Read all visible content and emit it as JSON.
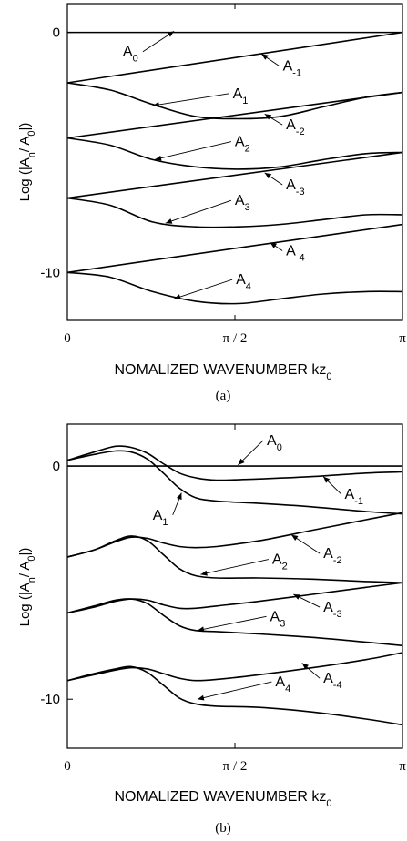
{
  "chart_data": [
    {
      "type": "line",
      "panel_label": "(a)",
      "xlabel": "NOMALIZED WAVENUMBER kz",
      "xlabel_sub": "0",
      "ylabel": "Log (|A_n/A_0|)",
      "xlim": [
        0,
        3.1416
      ],
      "ylim": [
        -12,
        1.2
      ],
      "x_ticks": [
        {
          "v": 0,
          "label": "0"
        },
        {
          "v": 1.5708,
          "label": "π / 2"
        },
        {
          "v": 3.1416,
          "label": "π"
        }
      ],
      "y_ticks": [
        {
          "v": 0,
          "label": "0"
        },
        {
          "v": -10,
          "label": "-10"
        }
      ],
      "series": [
        {
          "name": "A0",
          "x": [
            0,
            3.1416
          ],
          "y": [
            0,
            0
          ]
        },
        {
          "name": "A-1",
          "x": [
            0,
            3.1416
          ],
          "y": [
            -2.1,
            0
          ]
        },
        {
          "name": "A1",
          "x": [
            0,
            0.4,
            0.8,
            1.2,
            1.6,
            2.0,
            2.4,
            2.8,
            3.1416
          ],
          "y": [
            -2.1,
            -2.4,
            -3.0,
            -3.5,
            -3.6,
            -3.5,
            -3.1,
            -2.7,
            -2.5
          ]
        },
        {
          "name": "A-2",
          "x": [
            0,
            3.1416
          ],
          "y": [
            -4.4,
            -2.5
          ]
        },
        {
          "name": "A2",
          "x": [
            0,
            0.4,
            0.8,
            1.2,
            1.6,
            2.0,
            2.4,
            2.8,
            3.1416
          ],
          "y": [
            -4.4,
            -4.7,
            -5.3,
            -5.6,
            -5.7,
            -5.6,
            -5.3,
            -5.05,
            -5.0
          ]
        },
        {
          "name": "A-3",
          "x": [
            0,
            3.1416
          ],
          "y": [
            -6.9,
            -5.0
          ]
        },
        {
          "name": "A3",
          "x": [
            0,
            0.4,
            0.8,
            1.2,
            1.6,
            2.0,
            2.4,
            2.8,
            3.1416
          ],
          "y": [
            -6.9,
            -7.2,
            -7.9,
            -8.1,
            -8.1,
            -8.0,
            -7.8,
            -7.6,
            -7.6
          ]
        },
        {
          "name": "A-4",
          "x": [
            0,
            3.1416
          ],
          "y": [
            -10.0,
            -8.0
          ]
        },
        {
          "name": "A4",
          "x": [
            0,
            0.4,
            0.8,
            1.2,
            1.6,
            2.0,
            2.4,
            2.8,
            3.1416
          ],
          "y": [
            -10.0,
            -10.2,
            -10.8,
            -11.2,
            -11.3,
            -11.1,
            -10.9,
            -10.8,
            -10.8
          ]
        }
      ],
      "annotations": [
        {
          "series": "A0",
          "main": "A",
          "sub": "0",
          "label_x": 0.52,
          "label_y": -0.8,
          "arrow_x": 1.0,
          "arrow_y": 0.05
        },
        {
          "series": "A-1",
          "main": "A",
          "sub": "-1",
          "label_x": 2.02,
          "label_y": -1.4,
          "arrow_x": 1.82,
          "arrow_y": -0.9
        },
        {
          "series": "A1",
          "main": "A",
          "sub": "1",
          "label_x": 1.55,
          "label_y": -2.55,
          "arrow_x": 0.8,
          "arrow_y": -3.05
        },
        {
          "series": "A-2",
          "main": "A",
          "sub": "-2",
          "label_x": 2.05,
          "label_y": -3.85,
          "arrow_x": 1.85,
          "arrow_y": -3.4
        },
        {
          "series": "A2",
          "main": "A",
          "sub": "2",
          "label_x": 1.57,
          "label_y": -4.55,
          "arrow_x": 0.82,
          "arrow_y": -5.3
        },
        {
          "series": "A-3",
          "main": "A",
          "sub": "-3",
          "label_x": 2.05,
          "label_y": -6.35,
          "arrow_x": 1.85,
          "arrow_y": -5.85
        },
        {
          "series": "A3",
          "main": "A",
          "sub": "3",
          "label_x": 1.57,
          "label_y": -7.0,
          "arrow_x": 0.92,
          "arrow_y": -7.95
        },
        {
          "series": "A-4",
          "main": "A",
          "sub": "-4",
          "label_x": 2.05,
          "label_y": -9.1,
          "arrow_x": 1.9,
          "arrow_y": -8.75
        },
        {
          "series": "A4",
          "main": "A",
          "sub": "4",
          "label_x": 1.58,
          "label_y": -10.3,
          "arrow_x": 1.0,
          "arrow_y": -11.1
        }
      ]
    },
    {
      "type": "line",
      "panel_label": "(b)",
      "xlabel": "NOMALIZED WAVENUMBER kz",
      "xlabel_sub": "0",
      "ylabel": "Log (|A_n/A_0|)",
      "xlim": [
        0,
        3.1416
      ],
      "ylim": [
        -12.1,
        1.8
      ],
      "x_ticks": [
        {
          "v": 0,
          "label": "0"
        },
        {
          "v": 1.5708,
          "label": "π / 2"
        },
        {
          "v": 3.1416,
          "label": "π"
        }
      ],
      "y_ticks": [
        {
          "v": 0,
          "label": "0"
        },
        {
          "v": -10,
          "label": "-10"
        }
      ],
      "series": [
        {
          "name": "A0",
          "x": [
            0,
            3.1416
          ],
          "y": [
            0,
            0
          ]
        },
        {
          "name": "A-1",
          "x": [
            0,
            0.25,
            0.45,
            0.6,
            0.75,
            0.9,
            1.05,
            1.2,
            1.4,
            1.8,
            2.3,
            2.8,
            3.1416
          ],
          "y": [
            0.25,
            0.6,
            0.85,
            0.8,
            0.55,
            0.1,
            -0.3,
            -0.5,
            -0.6,
            -0.55,
            -0.45,
            -0.3,
            -0.25
          ]
        },
        {
          "name": "A1",
          "x": [
            0,
            0.25,
            0.45,
            0.6,
            0.75,
            0.9,
            1.05,
            1.2,
            1.4,
            1.8,
            2.3,
            2.8,
            3.1416
          ],
          "y": [
            0.25,
            0.5,
            0.65,
            0.6,
            0.3,
            -0.3,
            -0.95,
            -1.35,
            -1.5,
            -1.6,
            -1.75,
            -1.95,
            -2.05
          ]
        },
        {
          "name": "A-2",
          "x": [
            0,
            0.25,
            0.45,
            0.6,
            0.75,
            0.9,
            1.05,
            1.2,
            1.4,
            1.8,
            2.3,
            2.8,
            3.1416
          ],
          "y": [
            -3.9,
            -3.6,
            -3.25,
            -3.05,
            -3.1,
            -3.3,
            -3.45,
            -3.5,
            -3.45,
            -3.2,
            -2.75,
            -2.3,
            -2.0
          ]
        },
        {
          "name": "A2",
          "x": [
            0,
            0.25,
            0.45,
            0.6,
            0.75,
            0.9,
            1.05,
            1.2,
            1.4,
            1.8,
            2.3,
            2.8,
            3.1416
          ],
          "y": [
            -3.9,
            -3.6,
            -3.2,
            -3.0,
            -3.2,
            -3.8,
            -4.4,
            -4.7,
            -4.8,
            -4.8,
            -4.85,
            -4.95,
            -5.0
          ]
        },
        {
          "name": "A-3",
          "x": [
            0,
            0.25,
            0.45,
            0.6,
            0.75,
            0.9,
            1.05,
            1.2,
            1.4,
            1.8,
            2.3,
            2.8,
            3.1416
          ],
          "y": [
            -6.3,
            -6.05,
            -5.8,
            -5.7,
            -5.75,
            -5.95,
            -6.1,
            -6.1,
            -6.0,
            -5.8,
            -5.5,
            -5.2,
            -5.0
          ]
        },
        {
          "name": "A3",
          "x": [
            0,
            0.25,
            0.45,
            0.6,
            0.75,
            0.9,
            1.05,
            1.2,
            1.4,
            1.8,
            2.3,
            2.8,
            3.1416
          ],
          "y": [
            -6.3,
            -6.0,
            -5.75,
            -5.7,
            -5.9,
            -6.4,
            -6.85,
            -7.05,
            -7.1,
            -7.2,
            -7.35,
            -7.55,
            -7.7
          ]
        },
        {
          "name": "A-4",
          "x": [
            0,
            0.25,
            0.45,
            0.6,
            0.75,
            0.9,
            1.05,
            1.2,
            1.4,
            1.8,
            2.3,
            2.8,
            3.1416
          ],
          "y": [
            -9.2,
            -8.95,
            -8.75,
            -8.65,
            -8.7,
            -8.9,
            -9.1,
            -9.2,
            -9.15,
            -8.95,
            -8.65,
            -8.3,
            -8.0
          ]
        },
        {
          "name": "A4",
          "x": [
            0,
            0.25,
            0.45,
            0.6,
            0.75,
            0.9,
            1.05,
            1.2,
            1.4,
            1.8,
            2.3,
            2.8,
            3.1416
          ],
          "y": [
            -9.2,
            -8.9,
            -8.7,
            -8.6,
            -8.85,
            -9.4,
            -9.95,
            -10.2,
            -10.3,
            -10.35,
            -10.55,
            -10.85,
            -11.1
          ]
        }
      ],
      "annotations": [
        {
          "series": "A0",
          "main": "A",
          "sub": "0",
          "label_x": 1.87,
          "label_y": 1.1,
          "arrow_x": 1.6,
          "arrow_y": 0.05
        },
        {
          "series": "A-1",
          "main": "A",
          "sub": "-1",
          "label_x": 2.6,
          "label_y": -1.2,
          "arrow_x": 2.4,
          "arrow_y": -0.45
        },
        {
          "series": "A1",
          "main": "A",
          "sub": "1",
          "label_x": 0.8,
          "label_y": -2.1,
          "arrow_x": 1.07,
          "arrow_y": -1.15
        },
        {
          "series": "A-2",
          "main": "A",
          "sub": "-2",
          "label_x": 2.4,
          "label_y": -3.75,
          "arrow_x": 2.1,
          "arrow_y": -2.95
        },
        {
          "series": "A2",
          "main": "A",
          "sub": "2",
          "label_x": 1.92,
          "label_y": -4.0,
          "arrow_x": 1.25,
          "arrow_y": -4.65
        },
        {
          "series": "A-3",
          "main": "A",
          "sub": "-3",
          "label_x": 2.4,
          "label_y": -6.05,
          "arrow_x": 2.12,
          "arrow_y": -5.5
        },
        {
          "series": "A3",
          "main": "A",
          "sub": "3",
          "label_x": 1.9,
          "label_y": -6.45,
          "arrow_x": 1.22,
          "arrow_y": -7.05
        },
        {
          "series": "A-4",
          "main": "A",
          "sub": "-4",
          "label_x": 2.4,
          "label_y": -9.1,
          "arrow_x": 2.2,
          "arrow_y": -8.45
        },
        {
          "series": "A4",
          "main": "A",
          "sub": "4",
          "label_x": 1.95,
          "label_y": -9.25,
          "arrow_x": 1.22,
          "arrow_y": -10.0
        }
      ]
    }
  ]
}
